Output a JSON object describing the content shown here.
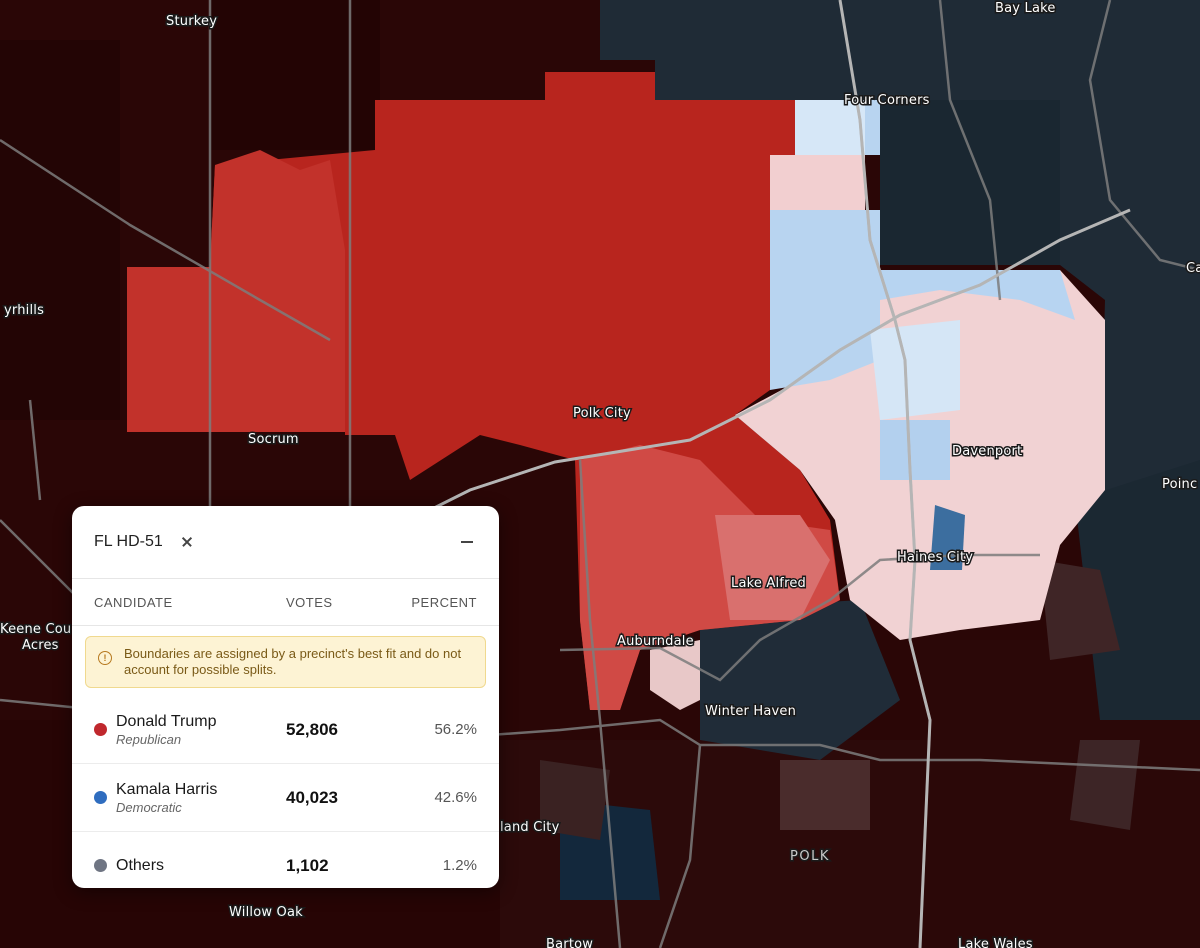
{
  "map": {
    "places": {
      "sturkey": "Sturkey",
      "bay_lake": "Bay Lake",
      "four_corners": "Four Corners",
      "ayrhills": "yrhills",
      "polk_city": "Polk City",
      "socrum": "Socrum",
      "davenport": "Davenport",
      "haines_city": "Haines City",
      "lake_alfred": "Lake Alfred",
      "keene_line1": "Keene Cou",
      "keene_line2": "Acres",
      "auburndale": "Auburndale",
      "winter_haven": "Winter Haven",
      "land_city": "land City",
      "polk": "POLK",
      "willow_oak": "Willow Oak",
      "bartow": "Bartow",
      "lake_wales": "Lake Wales",
      "poinc": "Poinc",
      "ca_edge": "Ca"
    },
    "colors": {
      "background_rep": "#2a0606",
      "background_dem": "#1f2b36",
      "strong_rep": "#b8251e",
      "lean_rep": "#f1d2d3",
      "lean_dem": "#b7d4f1",
      "strong_dem": "#3c6e9f"
    }
  },
  "panel": {
    "title": "FL HD-51",
    "columns": {
      "candidate": "CANDIDATE",
      "votes": "VOTES",
      "percent": "PERCENT"
    },
    "notice": "Boundaries are assigned by a precinct's best fit and do not account for possible splits.",
    "candidates": [
      {
        "name": "Donald Trump",
        "party": "Republican",
        "votes": "52,806",
        "percent": "56.2%",
        "color": "#c0282d"
      },
      {
        "name": "Kamala Harris",
        "party": "Democratic",
        "votes": "40,023",
        "percent": "42.6%",
        "color": "#2f6dbf"
      },
      {
        "name": "Others",
        "party": "",
        "votes": "1,102",
        "percent": "1.2%",
        "color": "#6f7583"
      }
    ]
  }
}
